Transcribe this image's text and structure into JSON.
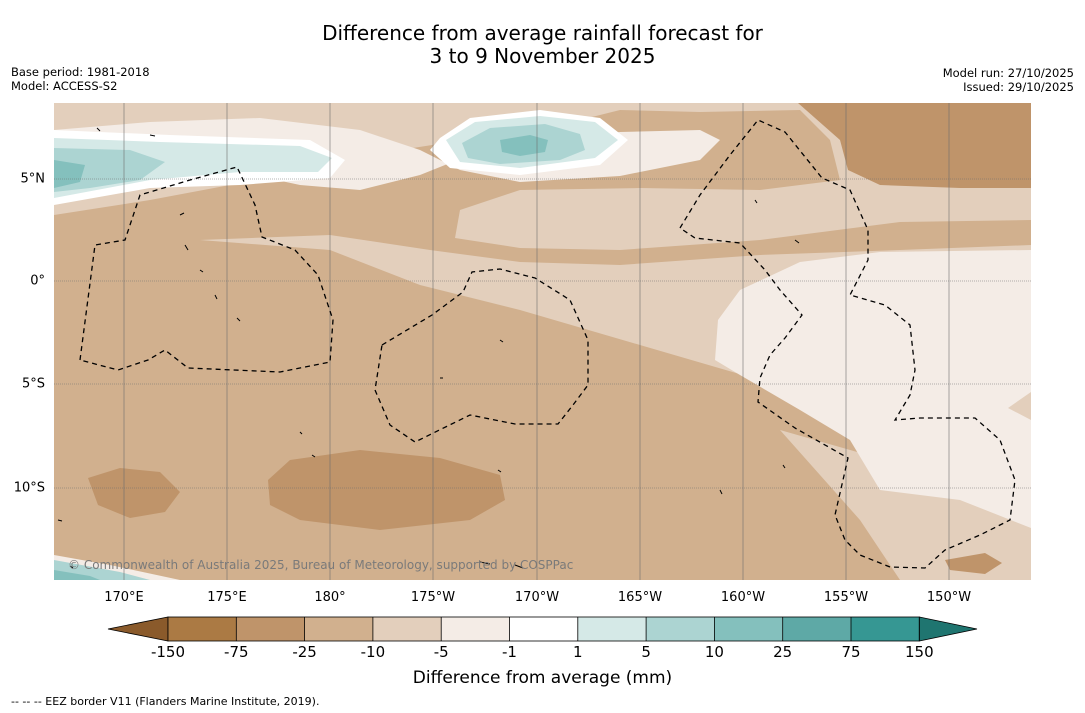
{
  "title": {
    "line1": "Difference from average rainfall forecast for",
    "line2": "3 to 9 November 2025"
  },
  "meta_left": {
    "base_period": "Base period: 1981-2018",
    "model": "Model: ACCESS-S2"
  },
  "meta_right": {
    "model_run": "Model run: 27/10/2025",
    "issued": "Issued: 29/10/2025"
  },
  "map": {
    "longitude_labels": [
      "170°E",
      "175°E",
      "180°",
      "175°W",
      "170°W",
      "165°W",
      "160°W",
      "155°W",
      "150°W"
    ],
    "latitude_labels": [
      "5°N",
      "0°",
      "5°S",
      "10°S"
    ],
    "copyright": "© Commonwealth of Australia 2025, Bureau of Meteorology, supported by COSPPac"
  },
  "legend": {
    "title": "Difference from average (mm)",
    "ticks": [
      "-150",
      "-75",
      "-25",
      "-10",
      "-5",
      "-1",
      "1",
      "5",
      "10",
      "25",
      "75",
      "150"
    ],
    "colors": {
      "lt_-150": "#8a5a2b",
      "-150_-75": "#ab7a44",
      "-75_-25": "#bf946a",
      "-25_-10": "#d1b08e",
      "-10_-5": "#e3cfbc",
      "-5_-1": "#f4ece6",
      "-1_1": "#ffffff",
      "1_5": "#d5e9e7",
      "5_10": "#acd4d2",
      "10_25": "#84c0bd",
      "25_75": "#5ea9a6",
      "75_150": "#369793",
      "gt_150": "#1f7570"
    }
  },
  "footnote": "-- -- -- EEZ border V11 (Flanders Marine Institute, 2019)."
}
